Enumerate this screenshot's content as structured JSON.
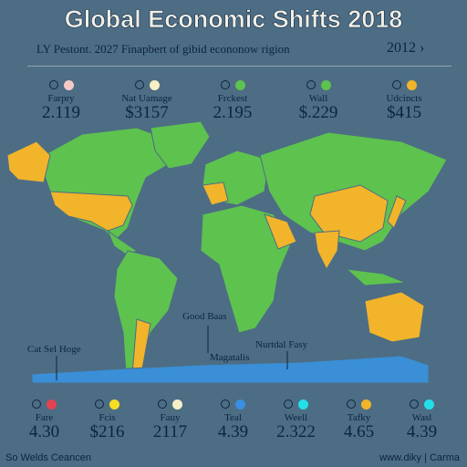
{
  "header": {
    "title": "Global Economic Shifts 2018",
    "subtitle": "LY Pestont. 2027 Finapbert of gibid econonow rigion",
    "year_selector": "2012 ›"
  },
  "top_stats": [
    {
      "label": "Farpry",
      "value": "2.119",
      "color": "#f6c9c9"
    },
    {
      "label": "Nat Uamage",
      "value": "$3157",
      "color": "#f7efc4"
    },
    {
      "label": "Frckest",
      "value": "2.195",
      "color": "#5ec24f"
    },
    {
      "label": "Wall",
      "value": "$.229",
      "color": "#5ec24f"
    },
    {
      "label": "Udcincts",
      "value": "$415",
      "color": "#f2b42a"
    }
  ],
  "map_labels": [
    "Good Baas",
    "Nurtdal Fasy",
    "Cat Sel Hoge",
    "Magatalis"
  ],
  "bottom_stats": [
    {
      "label": "Fare",
      "value": "4.30",
      "color": "#e5434f"
    },
    {
      "label": "Fcis",
      "value": "$216",
      "color": "#f4e021"
    },
    {
      "label": "Fauy",
      "value": "2117",
      "color": "#f5efc8"
    },
    {
      "label": "Teal",
      "value": "4.39",
      "color": "#3a8fe0"
    },
    {
      "label": "Weell",
      "value": "2.322",
      "color": "#22e0e8"
    },
    {
      "label": "Tafky",
      "value": "4.65",
      "color": "#f2b42a"
    },
    {
      "label": "Wasl",
      "value": "4.39",
      "color": "#22e0e8"
    }
  ],
  "footer": {
    "left": "So Welds Ceancen",
    "right": "www.diky | Carma"
  }
}
